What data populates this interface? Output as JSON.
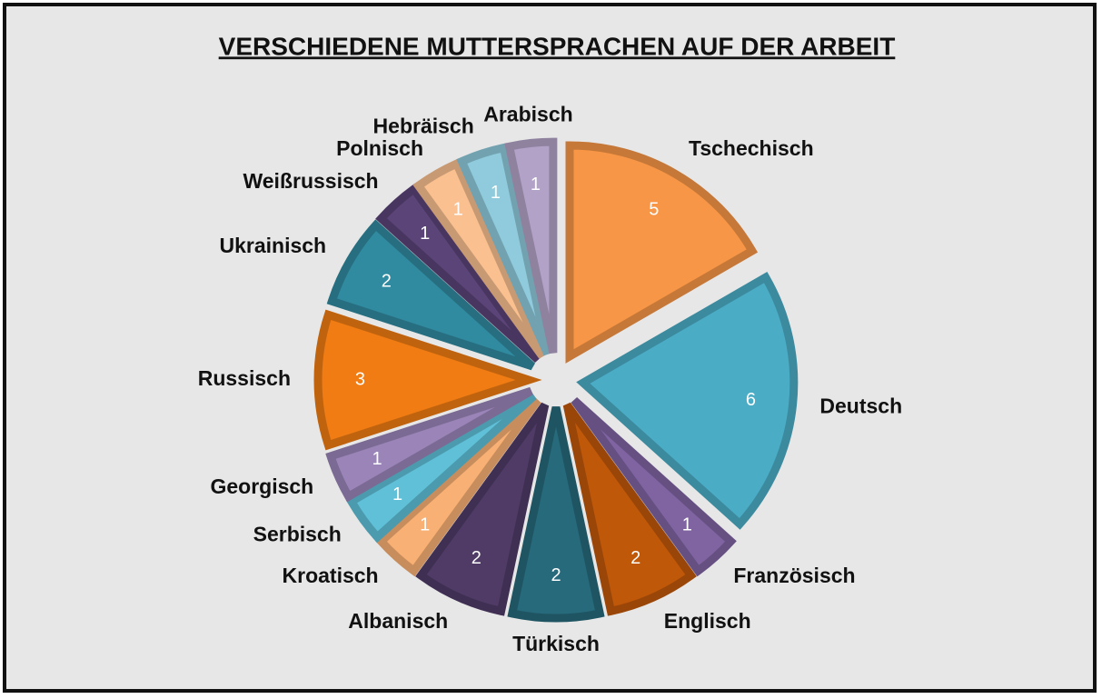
{
  "chart_data": {
    "type": "pie",
    "title": "VERSCHIEDENE MUTTERSPRACHEN AUF DER ARBEIT",
    "categories": [
      "Tschechisch",
      "Deutsch",
      "Französisch",
      "Englisch",
      "Türkisch",
      "Albanisch",
      "Kroatisch",
      "Serbisch",
      "Georgisch",
      "Russisch",
      "Ukrainisch",
      "Weißrussisch",
      "Polnisch",
      "Hebräisch",
      "Arabisch"
    ],
    "values": [
      5,
      6,
      1,
      2,
      2,
      2,
      1,
      1,
      1,
      3,
      2,
      1,
      1,
      1,
      1
    ],
    "colors": [
      "#f79646",
      "#4bacc6",
      "#8064a2",
      "#c0580a",
      "#276a7c",
      "#4f3b66",
      "#f9b074",
      "#5fc0d8",
      "#9a84b8",
      "#f07c13",
      "#318ba0",
      "#5b4478",
      "#fac090",
      "#8fcbdc",
      "#b3a2c7"
    ]
  }
}
